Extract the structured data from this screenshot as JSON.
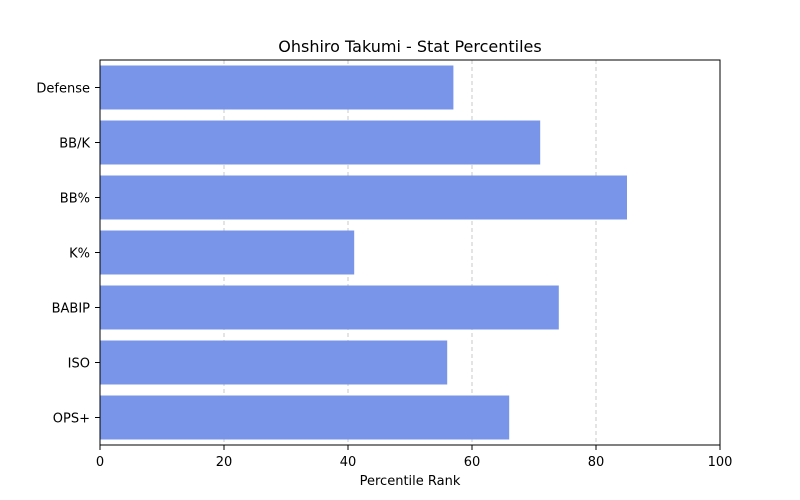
{
  "chart_data": {
    "type": "bar",
    "orientation": "horizontal",
    "title": "Ohshiro Takumi - Stat Percentiles",
    "xlabel": "Percentile Rank",
    "ylabel": "",
    "xlim": [
      0,
      100
    ],
    "xticks": [
      "0",
      "20",
      "40",
      "60",
      "80",
      "100"
    ],
    "grid": "x-dashed",
    "bar_color": "#7895e9",
    "categories": [
      "Defense",
      "BB/K",
      "BB%",
      "K%",
      "BABIP",
      "ISO",
      "OPS+"
    ],
    "values": [
      57,
      71,
      85,
      41,
      74,
      56,
      66
    ]
  }
}
